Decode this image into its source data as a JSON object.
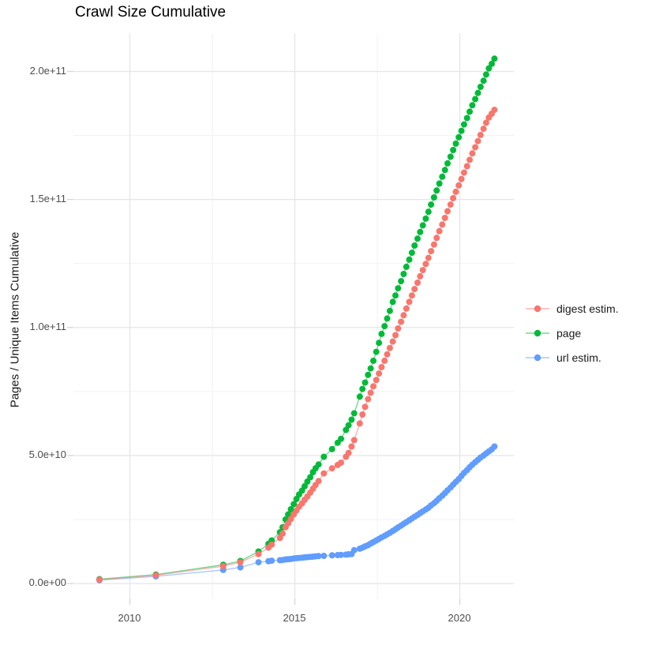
{
  "title": "Crawl Size Cumulative",
  "y_axis": {
    "label": "Pages / Unique Items Cumulative",
    "tick_labels": [
      "0.0e+00",
      "5.0e+10",
      "1.0e+11",
      "1.5e+11",
      "2.0e+11"
    ]
  },
  "x_axis": {
    "tick_labels": [
      "2010",
      "2015",
      "2020"
    ]
  },
  "legend": {
    "items": [
      {
        "label": "digest estim.",
        "color": "#F8766D"
      },
      {
        "label": "page",
        "color": "#00BA38"
      },
      {
        "label": "url estim.",
        "color": "#619CFF"
      }
    ]
  },
  "chart_data": {
    "type": "scatter",
    "title": "Crawl Size Cumulative",
    "xlabel": "",
    "ylabel": "Pages / Unique Items Cumulative",
    "xlim": [
      2008.3,
      2021.8
    ],
    "ylim": [
      0,
      215000000000.0
    ],
    "grid": "on",
    "legend_position": "right",
    "y_unit": "pages, values given in billions (1e9)",
    "y_major_gridlines_billions": [
      0,
      50,
      100,
      150,
      200
    ],
    "y_minor_gridlines_billions": [
      25,
      75,
      125,
      175
    ],
    "x_major_gridlines": [
      2010,
      2015,
      2020
    ],
    "x_minor_gridlines": [
      2012.5,
      2017.5
    ],
    "x_years": [
      2009.08,
      2010.79,
      2012.83,
      2013.35,
      2013.9,
      2014.2,
      2014.3,
      2014.55,
      2014.63,
      2014.72,
      2014.8,
      2014.88,
      2014.97,
      2015.05,
      2015.13,
      2015.22,
      2015.3,
      2015.38,
      2015.47,
      2015.55,
      2015.63,
      2015.72,
      2015.88,
      2016.13,
      2016.3,
      2016.4,
      2016.55,
      2016.63,
      2016.72,
      2016.8,
      2016.97,
      2017.05,
      2017.13,
      2017.22,
      2017.3,
      2017.38,
      2017.47,
      2017.55,
      2017.63,
      2017.72,
      2017.8,
      2017.88,
      2017.97,
      2018.05,
      2018.13,
      2018.22,
      2018.3,
      2018.38,
      2018.47,
      2018.55,
      2018.63,
      2018.72,
      2018.8,
      2018.88,
      2018.97,
      2019.05,
      2019.13,
      2019.22,
      2019.3,
      2019.38,
      2019.47,
      2019.55,
      2019.63,
      2019.72,
      2019.8,
      2019.88,
      2019.97,
      2020.05,
      2020.13,
      2020.22,
      2020.3,
      2020.38,
      2020.47,
      2020.55,
      2020.63,
      2020.72,
      2020.8,
      2020.88,
      2020.97,
      2021.05
    ],
    "series": [
      {
        "name": "digest estim.",
        "color": "#F8766D",
        "values_billions": [
          1.5,
          3.2,
          6.8,
          8.3,
          11.5,
          14.0,
          15.2,
          17.8,
          19.5,
          22.0,
          23.5,
          25.2,
          27.0,
          28.5,
          30.0,
          31.3,
          32.7,
          34.0,
          35.5,
          37.0,
          38.5,
          40.0,
          43.0,
          45.0,
          46.3,
          47.2,
          49.5,
          51.0,
          53.5,
          56.0,
          62.5,
          66.0,
          69.0,
          72.0,
          74.5,
          77.0,
          79.5,
          82.0,
          84.5,
          87.0,
          89.5,
          92.0,
          94.5,
          97.0,
          99.6,
          102.2,
          104.8,
          107.4,
          110.0,
          112.5,
          115.0,
          117.5,
          120.0,
          122.4,
          124.8,
          127.2,
          129.8,
          132.4,
          135.0,
          137.6,
          140.2,
          142.8,
          145.4,
          148.0,
          150.5,
          153.0,
          155.5,
          158.0,
          160.5,
          163.0,
          165.5,
          168.0,
          170.4,
          172.8,
          175.2,
          177.6,
          180.0,
          182.0,
          183.5,
          185.0
        ]
      },
      {
        "name": "page",
        "color": "#00BA38",
        "values_billions": [
          1.7,
          3.5,
          7.3,
          8.8,
          12.5,
          15.5,
          16.8,
          20.0,
          22.0,
          25.0,
          27.0,
          29.0,
          31.0,
          33.0,
          34.8,
          36.3,
          38.0,
          39.8,
          41.5,
          43.5,
          45.0,
          46.5,
          49.5,
          52.5,
          55.0,
          56.5,
          60.0,
          61.8,
          64.0,
          66.5,
          73.0,
          76.0,
          78.5,
          81.5,
          84.0,
          87.0,
          90.5,
          94.0,
          97.5,
          100.5,
          103.5,
          106.5,
          110.0,
          112.5,
          115.3,
          118.1,
          120.9,
          123.7,
          126.5,
          129.2,
          132.0,
          134.7,
          137.3,
          139.9,
          142.5,
          145.2,
          148.0,
          150.8,
          153.5,
          156.2,
          158.9,
          161.5,
          164.1,
          166.7,
          169.3,
          171.8,
          174.3,
          176.8,
          179.3,
          181.8,
          184.3,
          186.8,
          189.2,
          191.6,
          194.0,
          196.4,
          198.8,
          201.2,
          203.0,
          205.0
        ]
      },
      {
        "name": "url estim.",
        "color": "#619CFF",
        "values_billions": [
          1.3,
          2.8,
          5.3,
          6.3,
          8.3,
          8.7,
          8.9,
          9.1,
          9.2,
          9.4,
          9.5,
          9.6,
          9.8,
          9.9,
          10.0,
          10.1,
          10.2,
          10.3,
          10.4,
          10.5,
          10.6,
          10.7,
          10.8,
          11.0,
          11.1,
          11.2,
          11.3,
          11.4,
          11.5,
          13.0,
          13.6,
          14.0,
          14.5,
          15.0,
          15.6,
          16.2,
          16.8,
          17.4,
          18.0,
          18.6,
          19.2,
          19.8,
          20.5,
          21.2,
          21.9,
          22.6,
          23.3,
          24.0,
          24.7,
          25.4,
          26.1,
          26.8,
          27.5,
          28.2,
          28.9,
          29.6,
          30.5,
          31.4,
          32.3,
          33.3,
          34.3,
          35.3,
          36.4,
          37.5,
          38.6,
          39.7,
          40.8,
          42.0,
          43.2,
          44.3,
          45.4,
          46.4,
          47.4,
          48.3,
          49.2,
          50.0,
          50.8,
          51.6,
          52.4,
          53.5
        ]
      }
    ],
    "colors": {
      "major_grid": "#e5e5e5",
      "minor_grid": "#f1f1f1",
      "tick_mark": "#d6d6d6",
      "axis_text": "#4d4d4d",
      "title_text": "#000000"
    }
  }
}
